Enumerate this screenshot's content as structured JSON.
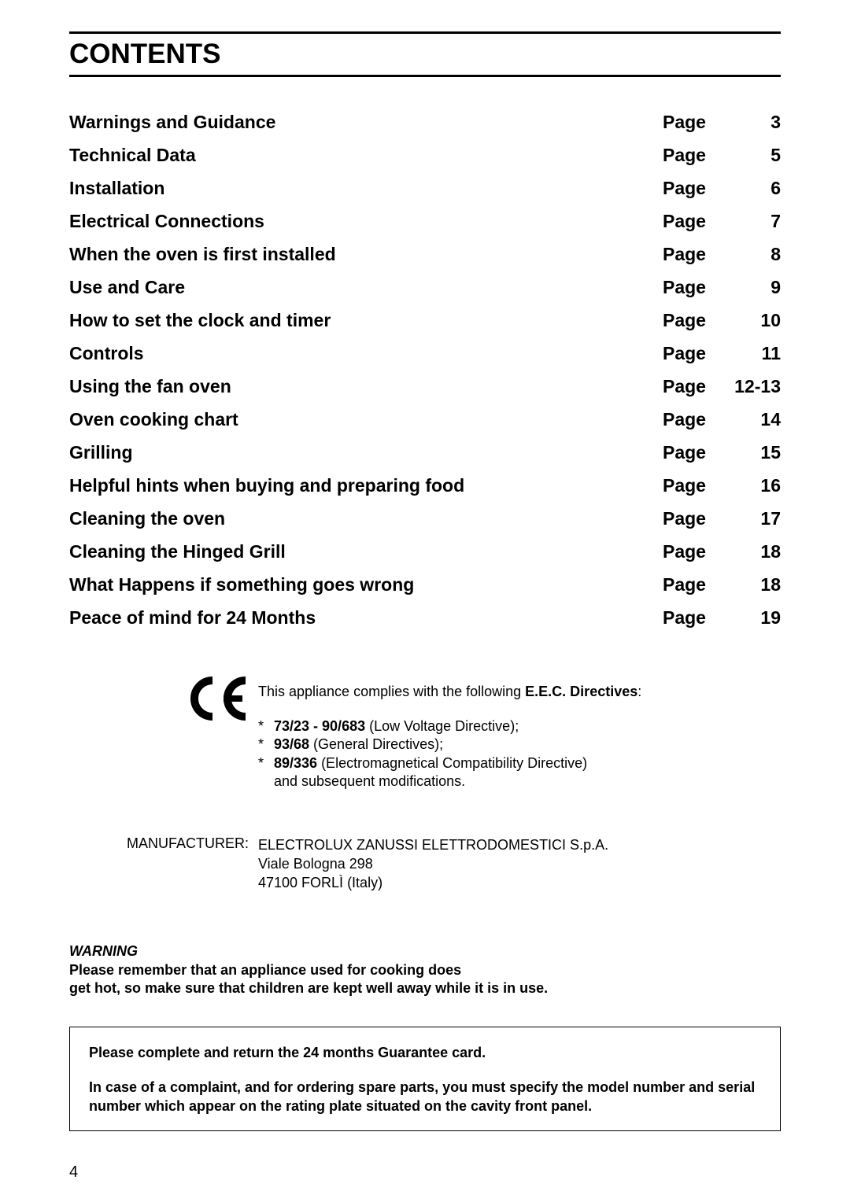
{
  "header": {
    "title": "CONTENTS"
  },
  "toc": {
    "pageLabel": "Page",
    "items": [
      {
        "title": "Warnings and Guidance",
        "num": "3"
      },
      {
        "title": "Technical Data",
        "num": "5"
      },
      {
        "title": "Installation",
        "num": "6"
      },
      {
        "title": "Electrical Connections",
        "num": "7"
      },
      {
        "title": "When the oven is first installed",
        "num": "8"
      },
      {
        "title": "Use and Care",
        "num": "9"
      },
      {
        "title": "How to set the clock and timer",
        "num": "10"
      },
      {
        "title": "Controls",
        "num": "11"
      },
      {
        "title": "Using the fan oven",
        "num": "12-13"
      },
      {
        "title": "Oven cooking chart",
        "num": "14"
      },
      {
        "title": "Grilling",
        "num": "15"
      },
      {
        "title": "Helpful hints when buying and preparing food",
        "num": "16"
      },
      {
        "title": "Cleaning the oven",
        "num": "17"
      },
      {
        "title": "Cleaning the Hinged Grill",
        "num": "18"
      },
      {
        "title": "What Happens if something goes wrong",
        "num": "18"
      },
      {
        "title": "Peace of mind for 24 Months",
        "num": "19"
      }
    ]
  },
  "compliance": {
    "intro_prefix": "This appliance complies with the following ",
    "intro_bold": "E.E.C. Directives",
    "intro_suffix": ":",
    "directives": [
      {
        "code": "73/23 - 90/683",
        "desc": " (Low Voltage Directive);"
      },
      {
        "code": "93/68",
        "desc": " (General Directives);"
      },
      {
        "code": "89/336",
        "desc": " (Electromagnetical Compatibility Directive)\nand subsequent modifications."
      }
    ]
  },
  "manufacturer": {
    "label": "MANUFACTURER:",
    "lines": [
      "ELECTROLUX ZANUSSI ELETTRODOMESTICI S.p.A.",
      "Viale Bologna 298",
      "47100 FORLÌ (Italy)"
    ]
  },
  "warning": {
    "heading": "WARNING",
    "body": "Please remember that an appliance used for cooking does\nget hot, so make sure that children are kept well away while it is in use."
  },
  "notice": {
    "p1": "Please complete and return the 24 months Guarantee card.",
    "p2": "In case of a complaint, and for ordering spare parts, you must specify the model number and serial number which appear on the rating plate situated on the cavity front panel."
  },
  "pageNumber": "4"
}
